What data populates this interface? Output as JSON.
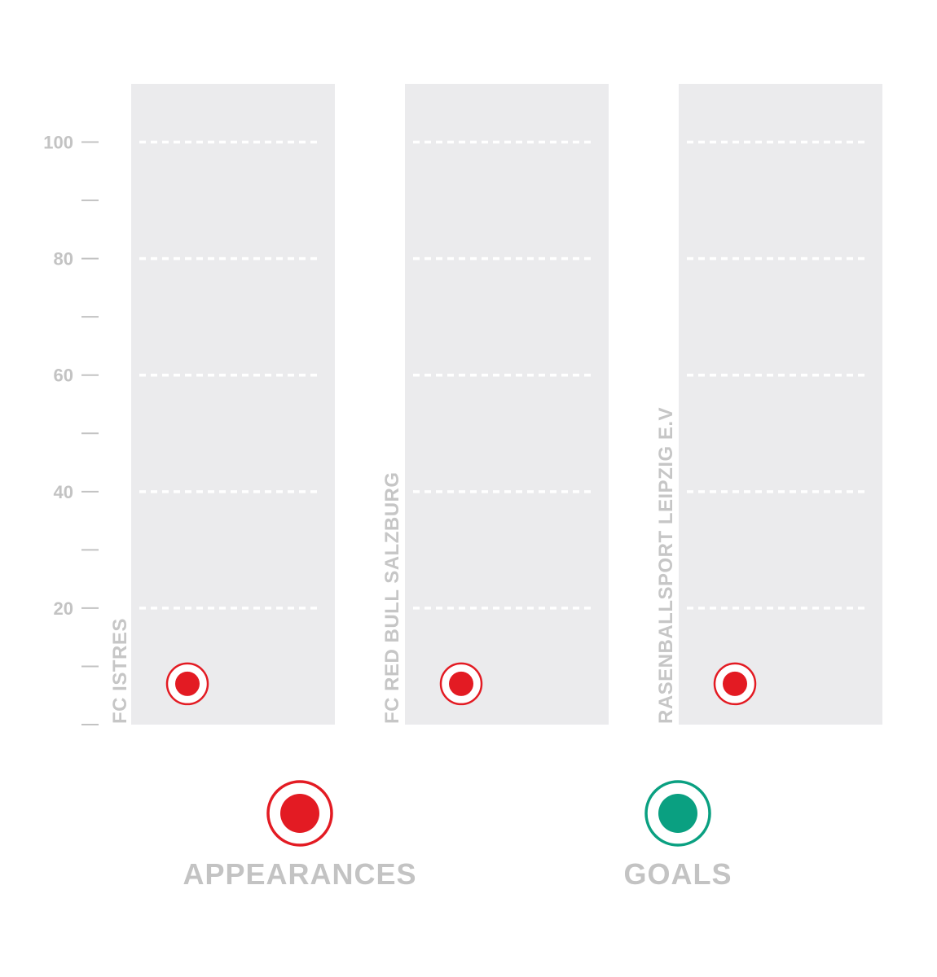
{
  "chart_data": {
    "type": "scatter",
    "title": "",
    "xlabel": "",
    "ylabel": "",
    "ylim": [
      0,
      110
    ],
    "y_ticks": [
      0,
      10,
      20,
      30,
      40,
      50,
      60,
      70,
      80,
      90,
      100
    ],
    "y_tick_labels": [
      "20",
      "40",
      "60",
      "80",
      "100"
    ],
    "y_tick_label_values": [
      20,
      40,
      60,
      80,
      100
    ],
    "grid": true,
    "legend_placement": "bottom",
    "categories": [
      "FC ISTRES",
      "FC RED BULL SALZBURG",
      "RASENBALLSPORT LEIPZIG E.V"
    ],
    "series": [
      {
        "name": "APPEARANCES",
        "color": "#e31b23",
        "values": [
          7,
          7,
          7
        ]
      },
      {
        "name": "GOALS",
        "color": "#0aa081",
        "values": [
          null,
          null,
          null
        ]
      }
    ],
    "colors": {
      "panel": "#ebebed",
      "grid": "#ffffff",
      "tick": "#c3c3c3",
      "label": "#c6c6c6"
    }
  }
}
